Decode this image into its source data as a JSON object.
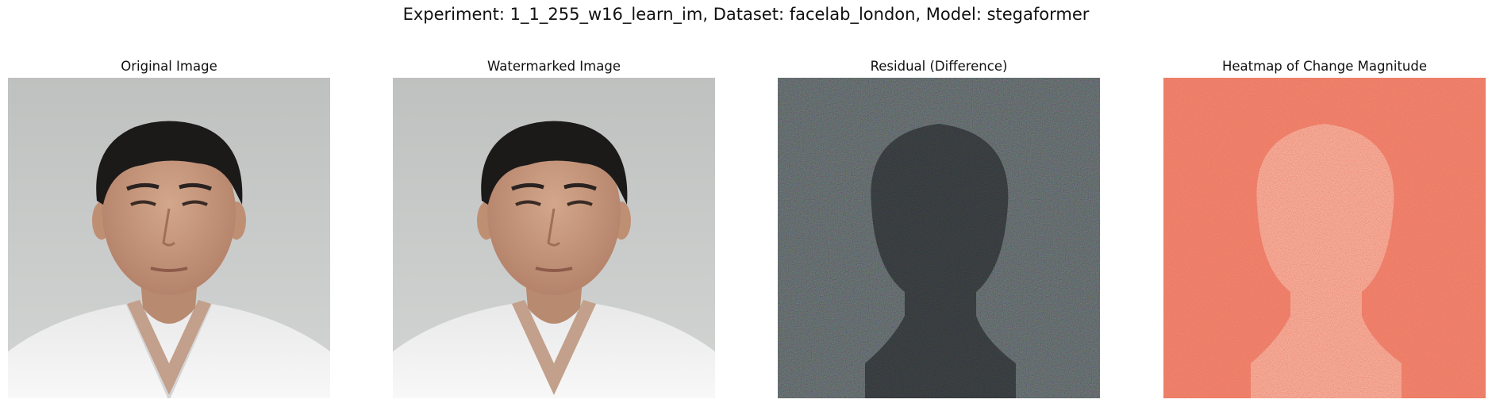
{
  "suptitle": "Experiment: 1_1_255_w16_learn_im, Dataset: facelab_london, Model: stegaformer",
  "panels": [
    {
      "title": "Original Image"
    },
    {
      "title": "Watermarked Image"
    },
    {
      "title": "Residual (Difference)"
    },
    {
      "title": "Heatmap of Change Magnitude"
    }
  ],
  "colors": {
    "portrait_background": "#c9cbca",
    "hair": "#1c1a19",
    "skin": "#c99b7f",
    "shirt": "#f1f1f2",
    "residual_background": "#2c3035",
    "heatmap_background": "#f0826c",
    "heatmap_face": "#f6b5a1"
  }
}
